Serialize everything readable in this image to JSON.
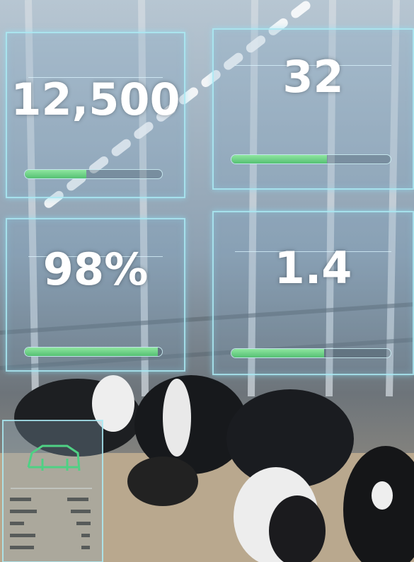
{
  "panels": [
    {
      "value": "12,500",
      "progress": 45
    },
    {
      "value": "32",
      "progress": 60
    },
    {
      "value": "98%",
      "progress": 97
    },
    {
      "value": "1.4",
      "progress": 58
    }
  ]
}
